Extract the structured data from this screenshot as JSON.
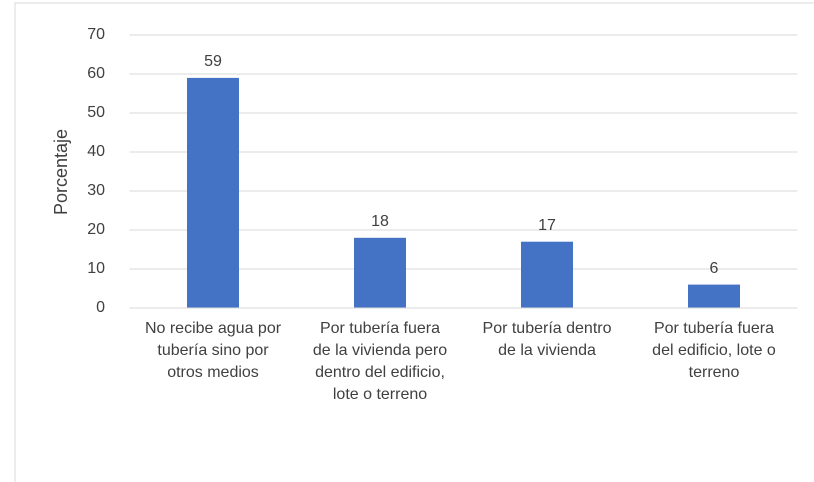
{
  "chart_data": {
    "type": "bar",
    "y_label": "Porcentaje",
    "categories": [
      "No recibe agua por tubería sino por otros medios",
      "Por tubería fuera de la vivienda pero dentro del edificio, lote o terreno",
      "Por tubería dentro de la vivienda",
      "Por tubería fuera del edificio, lote o terreno"
    ],
    "values": [
      59,
      18,
      17,
      6
    ],
    "color": "#4472c4",
    "ylim": [
      0,
      70
    ],
    "yticks": [
      0,
      10,
      20,
      30,
      40,
      50,
      60,
      70
    ],
    "grid": true
  }
}
